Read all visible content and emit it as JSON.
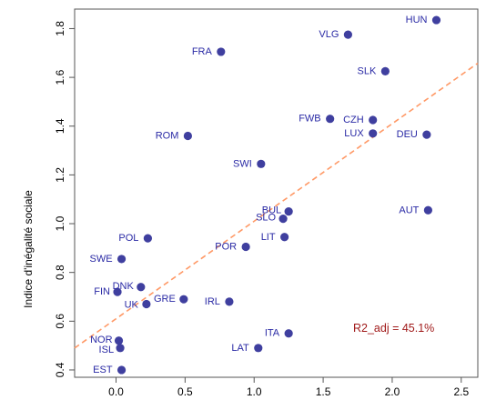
{
  "chart_data": {
    "type": "scatter",
    "title": "",
    "xlabel": "",
    "ylabel": "Indice d'inégalité sociale",
    "xlim": [
      -0.3,
      2.62
    ],
    "ylim": [
      0.37,
      1.88
    ],
    "xticks": [
      0.0,
      0.5,
      1.0,
      1.5,
      2.0,
      2.5
    ],
    "xtick_labels": [
      "0.0",
      "0.5",
      "1.0",
      "1.5",
      "2.0",
      "2.5"
    ],
    "yticks": [
      0.4,
      0.6,
      0.8,
      1.0,
      1.2,
      1.4,
      1.6,
      1.8
    ],
    "ytick_labels": [
      "0.4",
      "0.6",
      "0.8",
      "1.0",
      "1.2",
      "1.4",
      "1.6",
      "1.8"
    ],
    "grid": false,
    "points": [
      {
        "label": "HUN",
        "x": 2.32,
        "y": 1.835
      },
      {
        "label": "VLG",
        "x": 1.68,
        "y": 1.775
      },
      {
        "label": "FRA",
        "x": 0.76,
        "y": 1.705
      },
      {
        "label": "SLK",
        "x": 1.95,
        "y": 1.625
      },
      {
        "label": "FWB",
        "x": 1.55,
        "y": 1.43
      },
      {
        "label": "CZH",
        "x": 1.86,
        "y": 1.425
      },
      {
        "label": "LUX",
        "x": 1.86,
        "y": 1.37
      },
      {
        "label": "DEU",
        "x": 2.25,
        "y": 1.365
      },
      {
        "label": "ROM",
        "x": 0.52,
        "y": 1.36
      },
      {
        "label": "SWI",
        "x": 1.05,
        "y": 1.245
      },
      {
        "label": "AUT",
        "x": 2.26,
        "y": 1.055
      },
      {
        "label": "BUL",
        "x": 1.25,
        "y": 1.05
      },
      {
        "label": "SLO",
        "x": 1.21,
        "y": 1.02
      },
      {
        "label": "LIT",
        "x": 1.22,
        "y": 0.945
      },
      {
        "label": "POL",
        "x": 0.23,
        "y": 0.94
      },
      {
        "label": "POR",
        "x": 0.94,
        "y": 0.905
      },
      {
        "label": "SWE",
        "x": 0.04,
        "y": 0.855
      },
      {
        "label": "DNK",
        "x": 0.18,
        "y": 0.74
      },
      {
        "label": "FIN",
        "x": 0.01,
        "y": 0.72
      },
      {
        "label": "GRE",
        "x": 0.49,
        "y": 0.69
      },
      {
        "label": "UK",
        "x": 0.22,
        "y": 0.67
      },
      {
        "label": "IRL",
        "x": 0.82,
        "y": 0.68
      },
      {
        "label": "ITA",
        "x": 1.25,
        "y": 0.55
      },
      {
        "label": "NOR",
        "x": 0.02,
        "y": 0.52
      },
      {
        "label": "ISL",
        "x": 0.03,
        "y": 0.49
      },
      {
        "label": "LAT",
        "x": 1.03,
        "y": 0.49
      },
      {
        "label": "EST",
        "x": 0.04,
        "y": 0.4
      }
    ],
    "regression_line": {
      "intercept": 0.61,
      "slope": 0.4,
      "x_start": -0.3,
      "x_end": 2.62,
      "style": "dashed"
    },
    "annotation": "R2_adj = 45.1%",
    "colors": {
      "points": "#3f3f9f",
      "labels": "#2a2aa5",
      "regression": "#ff9966",
      "annotation": "#a01a1a",
      "axis": "#555555"
    }
  }
}
